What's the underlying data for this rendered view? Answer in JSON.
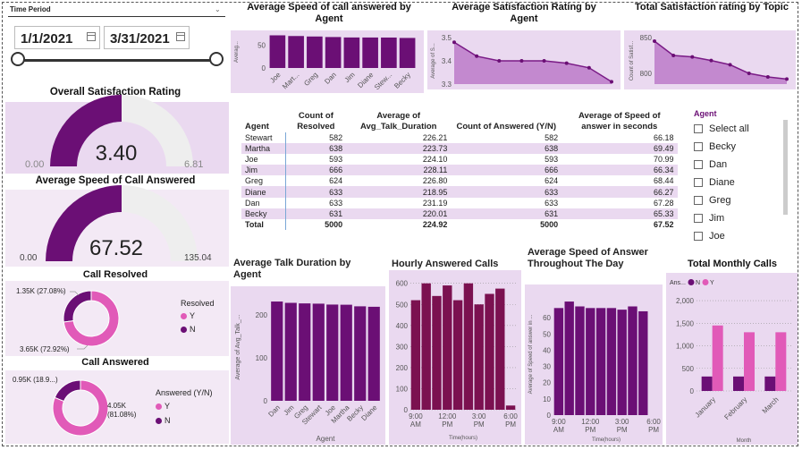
{
  "colors": {
    "purple": "#6b0f75",
    "pink": "#e15ab8",
    "panel": "#ead9f0",
    "light_gray": "#eeeeee",
    "area": "#c389cf",
    "line": "#7a1b86",
    "hourly_bar": "#7b1150"
  },
  "time_period": {
    "title": "Time Period",
    "start_date": "1/1/2021",
    "end_date": "3/31/2021",
    "icon": "calendar-icon",
    "slider_start": 0,
    "slider_end": 1
  },
  "overall_satisfaction": {
    "title": "Overall Satisfaction Rating",
    "value": "3.40",
    "min": "0.00",
    "max": "6.81",
    "fraction": 0.5
  },
  "avg_speed_gauge": {
    "title": "Average Speed of Call Answered",
    "value": "67.52",
    "min": "0.00",
    "max": "135.04",
    "fraction": 0.5
  },
  "call_resolved": {
    "title": "Call Resolved",
    "legend_title": "Resolved",
    "slices": [
      {
        "label": "Y",
        "value": "3.65K (72.92%)",
        "fraction": 0.7292,
        "color": "#e15ab8"
      },
      {
        "label": "N",
        "value": "1.35K (27.08%)",
        "fraction": 0.2708,
        "color": "#6b0f75"
      }
    ]
  },
  "call_answered": {
    "title": "Call Answered",
    "legend_title": "Answered (Y/N)",
    "slices": [
      {
        "label": "Y",
        "value": "4.05K (81.08%)",
        "fraction": 0.8108,
        "color": "#e15ab8"
      },
      {
        "label": "N",
        "value": "0.95K (18.9...)",
        "fraction": 0.1892,
        "color": "#6b0f75"
      }
    ]
  },
  "agent_table": {
    "headers": [
      "Agent",
      "Count of Resolved",
      "Average of Avg_Talk_Duration",
      "Count of Answered (Y/N)",
      "Average of Speed of answer in seconds"
    ],
    "rows": [
      [
        "Stewart",
        "582",
        "226.21",
        "582",
        "66.18"
      ],
      [
        "Martha",
        "638",
        "223.73",
        "638",
        "69.49"
      ],
      [
        "Joe",
        "593",
        "224.10",
        "593",
        "70.99"
      ],
      [
        "Jim",
        "666",
        "228.11",
        "666",
        "66.34"
      ],
      [
        "Greg",
        "624",
        "226.80",
        "624",
        "68.44"
      ],
      [
        "Diane",
        "633",
        "218.95",
        "633",
        "66.27"
      ],
      [
        "Dan",
        "633",
        "231.19",
        "633",
        "67.28"
      ],
      [
        "Becky",
        "631",
        "220.01",
        "631",
        "65.33"
      ]
    ],
    "total": [
      "Total",
      "5000",
      "224.92",
      "5000",
      "67.52"
    ]
  },
  "agent_slicer": {
    "title": "Agent",
    "items": [
      "Select all",
      "Becky",
      "Dan",
      "Diane",
      "Greg",
      "Jim",
      "Joe"
    ]
  },
  "chart_data": [
    {
      "id": "speed_by_agent",
      "type": "bar",
      "title": "Average Speed of call answered by Agent",
      "ylabel": "Averag...",
      "categories": [
        "Joe",
        "Mart...",
        "Greg",
        "Dan",
        "Jim",
        "Diane",
        "Stew...",
        "Becky"
      ],
      "values": [
        70.99,
        69.49,
        68.44,
        67.28,
        66.34,
        66.27,
        66.18,
        65.33
      ],
      "ylim": [
        0,
        70
      ],
      "yticks": [
        0,
        50
      ]
    },
    {
      "id": "satisfaction_by_agent",
      "type": "area",
      "title": "Average Satisfaction Rating by Agent",
      "ylabel": "Average of S...",
      "values": [
        3.48,
        3.42,
        3.4,
        3.4,
        3.4,
        3.39,
        3.37,
        3.31
      ],
      "ylim": [
        3.3,
        3.5
      ],
      "yticks": [
        3.3,
        3.4,
        3.5
      ]
    },
    {
      "id": "satisfaction_by_topic",
      "type": "area",
      "title": "Total Satisfaction rating by Topic",
      "ylabel": "Count of Satisf...",
      "values": [
        845,
        825,
        823,
        818,
        812,
        800,
        795,
        792
      ],
      "ylim": [
        785,
        850
      ],
      "yticks": [
        800,
        850
      ]
    },
    {
      "id": "talk_duration_by_agent",
      "type": "bar",
      "title": "Average Talk Duration by Agent",
      "xlabel": "Agent",
      "ylabel": "Average of Avg_Talk_...",
      "categories": [
        "Dan",
        "Jim",
        "Greg",
        "Stewart",
        "Joe",
        "Martha",
        "Becky",
        "Diane"
      ],
      "values": [
        231.19,
        228.11,
        226.8,
        226.21,
        224.1,
        223.73,
        220.01,
        218.95
      ],
      "ylim": [
        0,
        250
      ],
      "yticks": [
        0,
        100,
        200
      ]
    },
    {
      "id": "hourly_answered",
      "type": "bar",
      "title": "Hourly Answered Calls",
      "xlabel": "Time(hours)",
      "categories": [
        "9:00 AM",
        "10:00 AM",
        "11:00 AM",
        "12:00 PM",
        "1:00 PM",
        "2:00 PM",
        "3:00 PM",
        "4:00 PM",
        "5:00 PM",
        "6:00 PM"
      ],
      "tick_labels": [
        "9:00 AM",
        "12:00 PM",
        "3:00 PM",
        "6:00 PM"
      ],
      "values": [
        520,
        600,
        540,
        590,
        520,
        600,
        500,
        550,
        575,
        20
      ],
      "ylim": [
        0,
        620
      ],
      "yticks": [
        0,
        100,
        200,
        300,
        400,
        500,
        600
      ]
    },
    {
      "id": "speed_throughout_day",
      "type": "bar",
      "title": "Average Speed of Answer Throughout The Day",
      "xlabel": "Time(hours)",
      "ylabel": "Average of Speed of answer in ...",
      "categories": [
        "9:00 AM",
        "10:00 AM",
        "11:00 AM",
        "12:00 PM",
        "1:00 PM",
        "2:00 PM",
        "3:00 PM",
        "4:00 PM",
        "5:00 PM",
        "6:00 PM"
      ],
      "tick_labels": [
        "9:00 AM",
        "12:00 PM",
        "3:00 PM",
        "6:00 PM"
      ],
      "values": [
        66,
        70,
        67,
        66,
        66,
        66,
        65,
        67,
        64,
        0
      ],
      "ylim": [
        0,
        75
      ],
      "yticks": [
        0,
        10,
        20,
        30,
        40,
        50,
        60
      ]
    },
    {
      "id": "monthly_calls",
      "type": "bar",
      "title": "Total Monthly Calls",
      "xlabel": "Month",
      "legend_title": "Ans...",
      "categories": [
        "January",
        "February",
        "March"
      ],
      "series": [
        {
          "name": "N",
          "values": [
            320,
            320,
            320
          ],
          "color": "#6b0f75"
        },
        {
          "name": "Y",
          "values": [
            1450,
            1300,
            1300
          ],
          "color": "#e15ab8"
        }
      ],
      "ylim": [
        0,
        2100
      ],
      "yticks": [
        "0",
        "500",
        "1,000",
        "1,500",
        "2,000"
      ]
    }
  ]
}
